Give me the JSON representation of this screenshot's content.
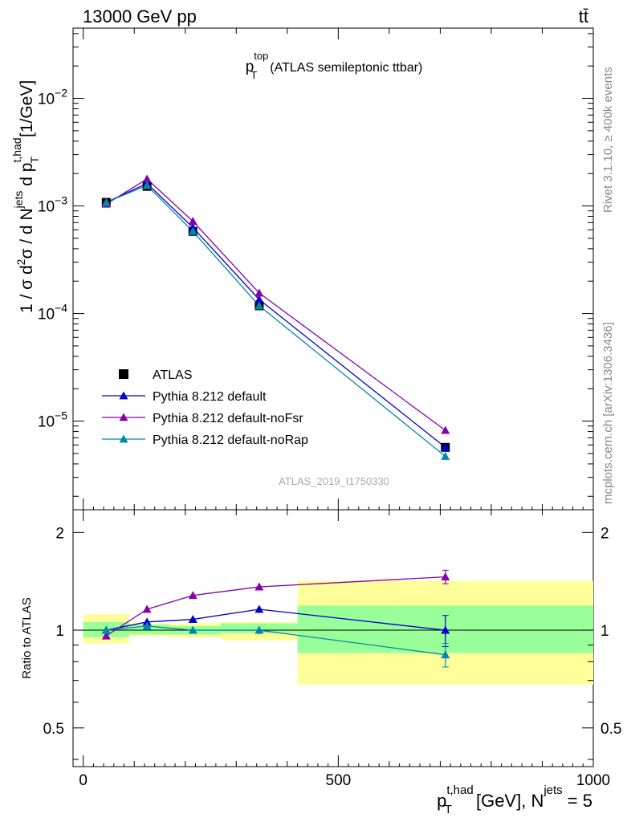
{
  "header": {
    "left": "13000 GeV pp",
    "right": "tt̄"
  },
  "side": {
    "rivet": "Rivet 3.1.10, ≥ 400k events",
    "mcplots": "mcplots.cern.ch [arXiv:1306.3436]"
  },
  "colors": {
    "atlas": "#000000",
    "default": "#0000cc",
    "noFsr": "#8800aa",
    "noRap": "#0088aa",
    "band_inner": "#99ff99",
    "band_outer": "#ffff99"
  },
  "chart_data": [
    {
      "type": "line",
      "panel": "main",
      "title": "p_T^top (ATLAS semileptonic ttbar)",
      "title_parts": {
        "p": "p",
        "sup": "top",
        "sub": "T",
        "rest": "(ATLAS semileptonic ttbar)"
      },
      "ylabel": "1 / σ d²σ / d N^jets d p_T^t,had [1/GeV]",
      "ylabel_parts": {
        "a": "1 / σ d",
        "b": "2",
        "c": "σ /  d N",
        "d": "jets",
        "e": " d p",
        "f": "t,had",
        "g": "T",
        "h": " [1/GeV]"
      },
      "yscale": "log",
      "ylim": [
        1.5e-06,
        0.045
      ],
      "xlim": [
        -20,
        1000
      ],
      "yticks": [
        {
          "base": "10",
          "exp": "−2",
          "value": 0.01
        },
        {
          "base": "10",
          "exp": "−3",
          "value": 0.001
        },
        {
          "base": "10",
          "exp": "−4",
          "value": 0.0001
        },
        {
          "base": "10",
          "exp": "−5",
          "value": 1e-05
        }
      ],
      "watermark": "ATLAS_2019_I1750330",
      "legend_position": "lower-left",
      "series": [
        {
          "name": "ATLAS",
          "marker": "square",
          "x": [
            45,
            125,
            215,
            345,
            710
          ],
          "y": [
            0.00108,
            0.00152,
            0.00058,
            0.000118,
            5.7e-06
          ]
        },
        {
          "name": "Pythia 8.212 default",
          "marker": "triangle",
          "x": [
            45,
            125,
            215,
            345,
            710
          ],
          "y": [
            0.00108,
            0.00162,
            0.00063,
            0.000135,
            5.7e-06
          ]
        },
        {
          "name": "Pythia 8.212 default-noFsr",
          "marker": "triangle",
          "x": [
            45,
            125,
            215,
            345,
            710
          ],
          "y": [
            0.00104,
            0.00178,
            0.00072,
            0.000155,
            8.2e-06
          ]
        },
        {
          "name": "Pythia 8.212 default-noRap",
          "marker": "triangle",
          "x": [
            45,
            125,
            215,
            345,
            710
          ],
          "y": [
            0.00108,
            0.00155,
            0.00058,
            0.000118,
            4.7e-06
          ]
        }
      ]
    },
    {
      "type": "line",
      "panel": "ratio",
      "ylabel": "Ratio to ATLAS",
      "xlabel_parts": {
        "p": "p",
        "sup": "t,had",
        "sub": "T",
        "mid": " [GeV], N",
        "jets": "jets",
        "end": " = 5"
      },
      "xlim": [
        -20,
        1000
      ],
      "ylim": [
        0.38,
        2.35
      ],
      "yscale": "log",
      "yticks": [
        {
          "label": "2",
          "value": 2
        },
        {
          "label": "1",
          "value": 1
        },
        {
          "label": "0.5",
          "value": 0.5
        }
      ],
      "xticks": [
        {
          "label": "0",
          "value": 0
        },
        {
          "label": "500",
          "value": 500
        },
        {
          "label": "1000",
          "value": 1000
        }
      ],
      "bands": [
        {
          "x0": 0,
          "x1": 90,
          "inner": [
            0.95,
            1.06
          ],
          "outer": [
            0.91,
            1.12
          ]
        },
        {
          "x0": 90,
          "x1": 170,
          "inner": [
            0.97,
            1.04
          ],
          "outer": [
            0.96,
            1.05
          ]
        },
        {
          "x0": 170,
          "x1": 270,
          "inner": [
            0.97,
            1.03
          ],
          "outer": [
            0.95,
            1.05
          ]
        },
        {
          "x0": 270,
          "x1": 420,
          "inner": [
            0.98,
            1.05
          ],
          "outer": [
            0.93,
            1.06
          ]
        },
        {
          "x0": 420,
          "x1": 1000,
          "inner": [
            0.85,
            1.19
          ],
          "outer": [
            0.68,
            1.42
          ]
        }
      ],
      "series": [
        {
          "name": "Pythia 8.212 default",
          "x": [
            45,
            125,
            215,
            345,
            710
          ],
          "y": [
            1.0,
            1.06,
            1.08,
            1.16,
            1.0
          ],
          "err": [
            0.02,
            0.02,
            0.02,
            0.03,
            0.11
          ]
        },
        {
          "name": "Pythia 8.212 default-noFsr",
          "x": [
            45,
            125,
            215,
            345,
            710
          ],
          "y": [
            0.96,
            1.16,
            1.28,
            1.36,
            1.46
          ],
          "err": [
            0.02,
            0.02,
            0.02,
            0.03,
            0.07
          ]
        },
        {
          "name": "Pythia 8.212 default-noRap",
          "x": [
            45,
            125,
            215,
            345,
            710
          ],
          "y": [
            1.0,
            1.03,
            1.0,
            1.0,
            0.84
          ],
          "err": [
            0.02,
            0.02,
            0.02,
            0.03,
            0.07
          ]
        }
      ]
    }
  ]
}
